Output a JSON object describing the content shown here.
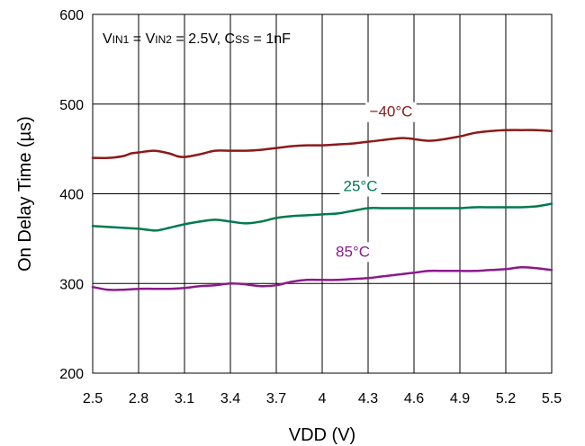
{
  "chart_data": {
    "type": "line",
    "xlabel": "VDD (V)",
    "ylabel": "On Delay Time (µs)",
    "xlim": [
      2.5,
      5.5
    ],
    "ylim": [
      200,
      600
    ],
    "x_ticks": [
      "2.5",
      "2.8",
      "3.1",
      "3.4",
      "3.7",
      "4",
      "4.3",
      "4.6",
      "4.9",
      "5.2",
      "5.5"
    ],
    "y_ticks": [
      "200",
      "300",
      "400",
      "500",
      "600"
    ],
    "grid": true,
    "annotation": {
      "parts": [
        {
          "text": "V",
          "sub": false
        },
        {
          "text": "IN1",
          "sub": true
        },
        {
          "text": " = V",
          "sub": false
        },
        {
          "text": "IN2",
          "sub": true
        },
        {
          "text": " = 2.5V, C",
          "sub": false
        },
        {
          "text": "SS",
          "sub": true
        },
        {
          "text": " = 1nF",
          "sub": false
        }
      ]
    },
    "series": [
      {
        "name": "−40°C",
        "color": "#8b1a1a",
        "x": [
          2.5,
          2.6,
          2.7,
          2.75,
          2.8,
          2.9,
          3.0,
          3.05,
          3.1,
          3.2,
          3.3,
          3.4,
          3.5,
          3.6,
          3.7,
          3.8,
          3.9,
          4.0,
          4.1,
          4.2,
          4.3,
          4.4,
          4.5,
          4.55,
          4.6,
          4.7,
          4.8,
          4.9,
          5.0,
          5.1,
          5.2,
          5.3,
          5.4,
          5.5
        ],
        "values": [
          440,
          440,
          442,
          445,
          446,
          448,
          445,
          442,
          441,
          444,
          448,
          448,
          448,
          449,
          451,
          453,
          454,
          454,
          455,
          456,
          458,
          460,
          462,
          462,
          461,
          459,
          461,
          464,
          468,
          470,
          471,
          471,
          471,
          470
        ]
      },
      {
        "name": "25°C",
        "color": "#007a4d",
        "x": [
          2.5,
          2.6,
          2.7,
          2.8,
          2.9,
          2.95,
          3.0,
          3.1,
          3.2,
          3.3,
          3.4,
          3.5,
          3.6,
          3.7,
          3.8,
          3.9,
          4.0,
          4.1,
          4.2,
          4.3,
          4.4,
          4.5,
          4.6,
          4.7,
          4.8,
          4.9,
          5.0,
          5.1,
          5.2,
          5.3,
          5.4,
          5.5
        ],
        "values": [
          364,
          363,
          362,
          361,
          359,
          360,
          362,
          366,
          369,
          371,
          369,
          367,
          369,
          373,
          375,
          376,
          377,
          378,
          381,
          384,
          384,
          384,
          384,
          384,
          384,
          384,
          385,
          385,
          385,
          385,
          386,
          389
        ]
      },
      {
        "name": "85°C",
        "color": "#8b1a8b",
        "x": [
          2.5,
          2.6,
          2.7,
          2.8,
          2.9,
          3.0,
          3.1,
          3.2,
          3.3,
          3.4,
          3.5,
          3.6,
          3.7,
          3.8,
          3.9,
          4.0,
          4.1,
          4.2,
          4.3,
          4.4,
          4.5,
          4.6,
          4.7,
          4.8,
          4.9,
          5.0,
          5.1,
          5.2,
          5.3,
          5.4,
          5.5
        ],
        "values": [
          296,
          293,
          293,
          294,
          294,
          294,
          295,
          297,
          298,
          300,
          299,
          297,
          298,
          302,
          304,
          304,
          304,
          305,
          306,
          308,
          310,
          312,
          314,
          314,
          314,
          314,
          315,
          316,
          318,
          317,
          315
        ]
      }
    ],
    "series_labels": [
      {
        "text": "−40°C",
        "x": 4.45,
        "y": 486
      },
      {
        "text": "25°C",
        "x": 4.25,
        "y": 403
      },
      {
        "text": "85°C",
        "x": 4.2,
        "y": 330
      }
    ]
  }
}
